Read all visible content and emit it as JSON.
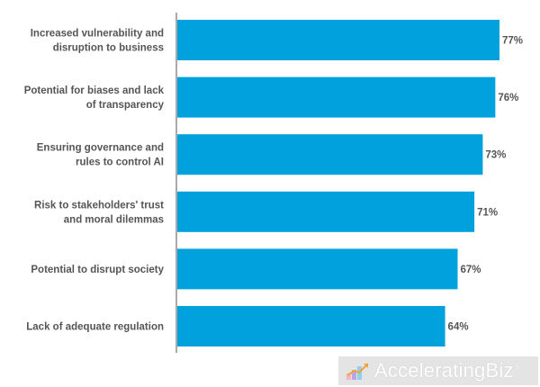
{
  "chart_data": {
    "type": "bar",
    "orientation": "horizontal",
    "categories": [
      [
        "Increased vulnerability and",
        "disruption to business"
      ],
      [
        "Potential for biases and lack",
        "of transparency"
      ],
      [
        "Ensuring governance and",
        "rules to control AI"
      ],
      [
        "Risk to stakeholders' trust",
        "and moral dilemmas"
      ],
      [
        "Potential to disrupt society"
      ],
      [
        "Lack of adequate regulation"
      ]
    ],
    "values": [
      77,
      76,
      73,
      71,
      67,
      64
    ],
    "value_labels": [
      "77%",
      "76%",
      "73%",
      "71%",
      "67%",
      "64%"
    ],
    "xlim": [
      0,
      80
    ],
    "grid": false,
    "bar_color": "#00a1dc"
  },
  "watermark": {
    "text": "AcceleratingBiz",
    "reg_mark": "®"
  }
}
